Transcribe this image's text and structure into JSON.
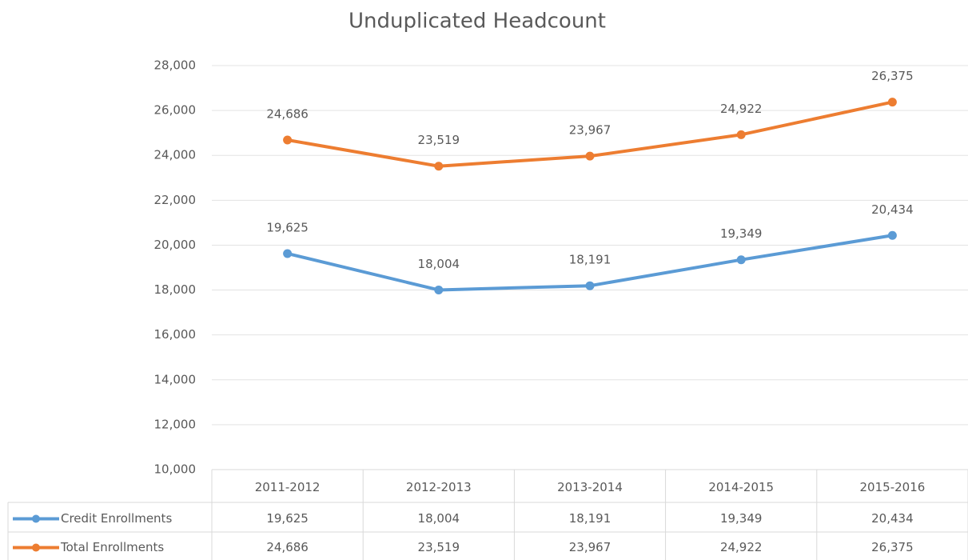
{
  "chart_data": {
    "type": "line",
    "title": "Unduplicated Headcount",
    "categories": [
      "2011-2012",
      "2012-2013",
      "2013-2014",
      "2014-2015",
      "2015-2016"
    ],
    "series": [
      {
        "name": "Credit Enrollments",
        "color": "#5b9bd5",
        "values": [
          19625,
          18004,
          18191,
          19349,
          20434
        ],
        "value_labels": [
          "19,625",
          "18,004",
          "18,191",
          "19,349",
          "20,434"
        ]
      },
      {
        "name": "Total Enrollments",
        "color": "#ed7d31",
        "values": [
          24686,
          23519,
          23967,
          24922,
          26375
        ],
        "value_labels": [
          "24,686",
          "23,519",
          "23,967",
          "24,922",
          "26,375"
        ]
      }
    ],
    "ylim": [
      10000,
      28000
    ],
    "yticks": [
      {
        "value": 10000,
        "label": "10,000"
      },
      {
        "value": 12000,
        "label": "12,000"
      },
      {
        "value": 14000,
        "label": "14,000"
      },
      {
        "value": 16000,
        "label": "16,000"
      },
      {
        "value": 18000,
        "label": "18,000"
      },
      {
        "value": 20000,
        "label": "20,000"
      },
      {
        "value": 22000,
        "label": "22,000"
      },
      {
        "value": 24000,
        "label": "24,000"
      },
      {
        "value": 26000,
        "label": "26,000"
      },
      {
        "value": 28000,
        "label": "28,000"
      }
    ],
    "grid": true
  }
}
